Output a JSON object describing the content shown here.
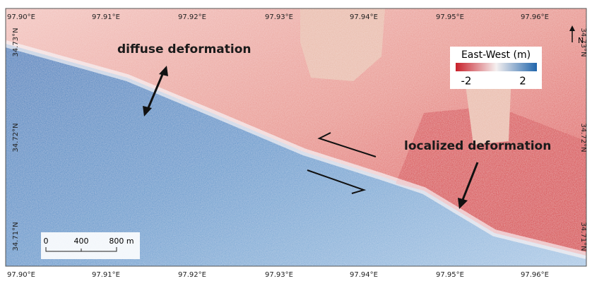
{
  "map": {
    "top_axis": [
      "97.90°E",
      "97.91°E",
      "97.92°E",
      "97.93°E",
      "97.94°E",
      "97.95°E",
      "97.96°E"
    ],
    "bottom_axis": [
      "97.90°E",
      "97.91°E",
      "97.92°E",
      "97.93°E",
      "97.94°E",
      "97.95°E",
      "97.96°E"
    ],
    "left_axis": [
      "34.73°N",
      "34.72°N",
      "34.71°N"
    ],
    "right_axis": [
      "34.73°N",
      "34.72°N",
      "34.71°N"
    ],
    "annotations": [
      "diffuse deformation",
      "localized deformation"
    ],
    "legend": {
      "title": "East-West (m)",
      "min": "-2",
      "max": "2"
    },
    "scale_bar": [
      "0",
      "400",
      "800 m"
    ],
    "north": "N"
  }
}
